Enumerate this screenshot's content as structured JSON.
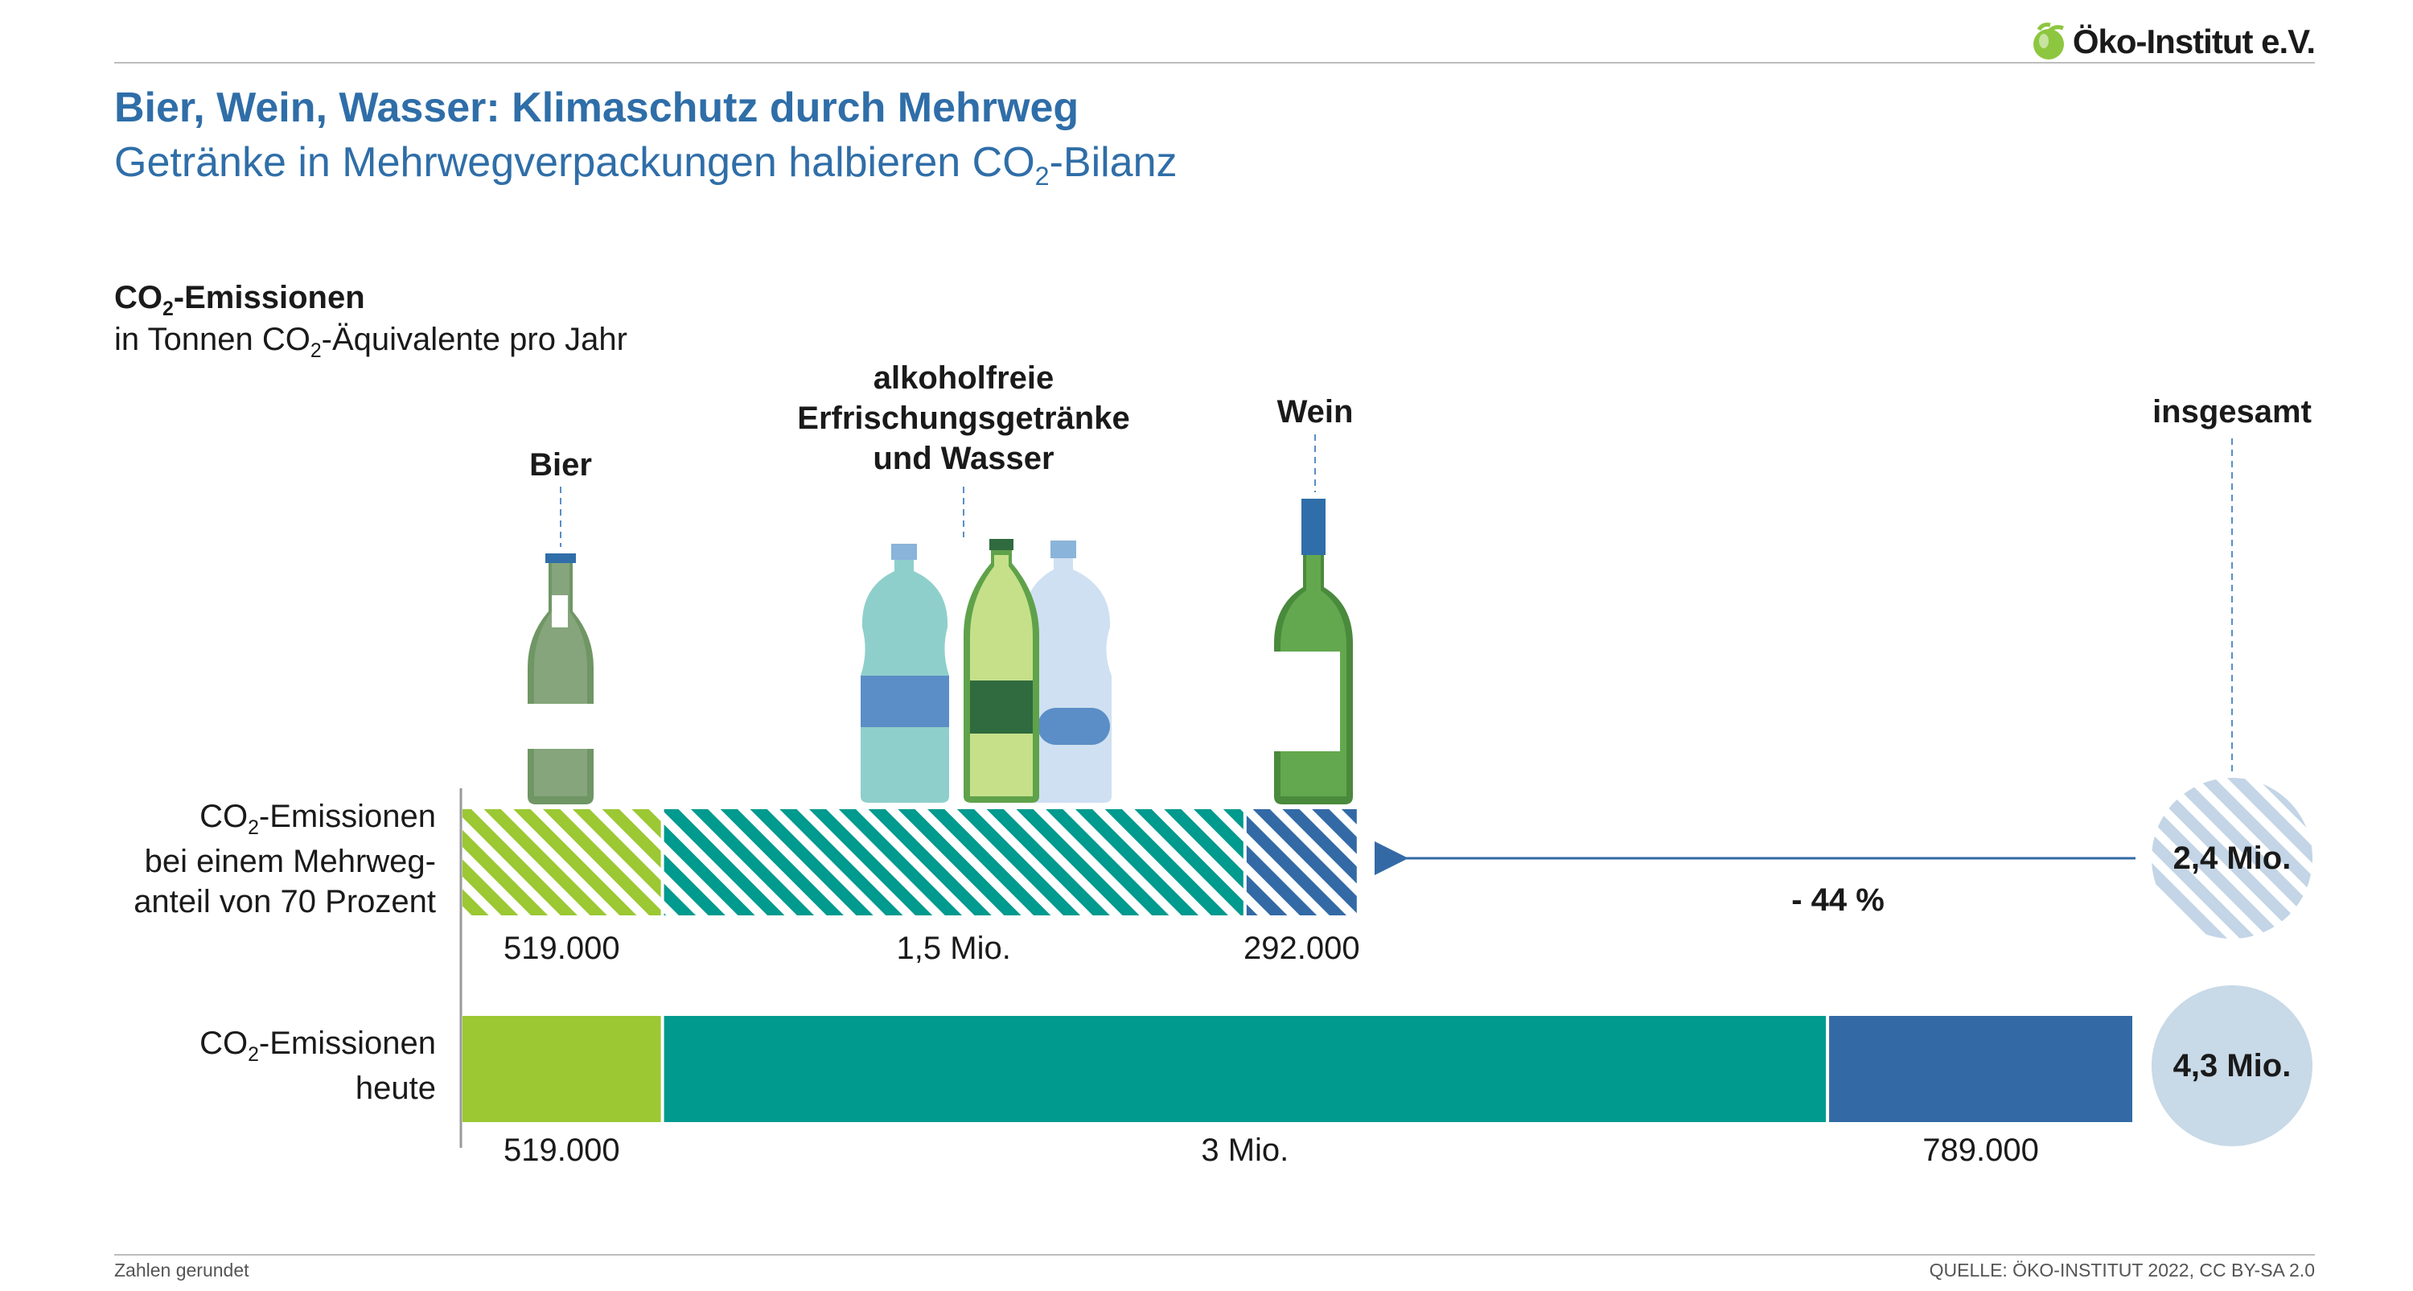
{
  "brand": {
    "name": "Öko-Institut e.V.",
    "leaf_color": "#8dc63f"
  },
  "title": "Bier, Wein, Wasser: Klimaschutz durch Mehrweg",
  "subtitle": {
    "pre": "Getränke in Mehrwegverpackungen halbieren CO",
    "sub": "2",
    "post": "-Bilanz"
  },
  "unit": {
    "title_pre": "CO",
    "title_sub": "2",
    "title_post": "-Emissionen",
    "desc_pre": "in Tonnen CO",
    "desc_sub": "2",
    "desc_post": "-Äquivalente pro Jahr"
  },
  "chart_data": {
    "type": "bar",
    "orientation": "horizontal-stacked",
    "categories": [
      "Bier",
      "alkoholfreie Erfrischungsgetränke und Wasser",
      "Wein"
    ],
    "category_labels": [
      "Bier",
      "alkoholfreie\nErfrischungsgetränke\nund Wasser",
      "Wein"
    ],
    "total_label": "insgesamt",
    "colors": {
      "Bier": "#9bc833",
      "Wasser": "#009a8e",
      "Wein": "#336aa6",
      "circle_scenario": "#c3d5e6",
      "circle_today": "#c8d9e7"
    },
    "series": [
      {
        "label_lines": [
          "CO|2|-Emissionen",
          "bei einem Mehrweg-",
          "anteil von 70 Prozent"
        ],
        "pattern": "hatched",
        "values": [
          519000,
          1500000,
          292000
        ],
        "value_labels": [
          "519.000",
          "1,5 Mio.",
          "292.000"
        ],
        "total_label": "2,4 Mio."
      },
      {
        "label_lines": [
          "CO|2|-Emissionen",
          "heute"
        ],
        "pattern": "solid",
        "values": [
          519000,
          3000000,
          789000
        ],
        "value_labels": [
          "519.000",
          "3 Mio.",
          "789.000"
        ],
        "total_label": "4,3 Mio."
      }
    ],
    "change_label": "- 44 %"
  },
  "footer": {
    "note": "Zahlen gerundet",
    "source": "QUELLE: ÖKO-INSTITUT 2022, CC BY-SA 2.0"
  }
}
